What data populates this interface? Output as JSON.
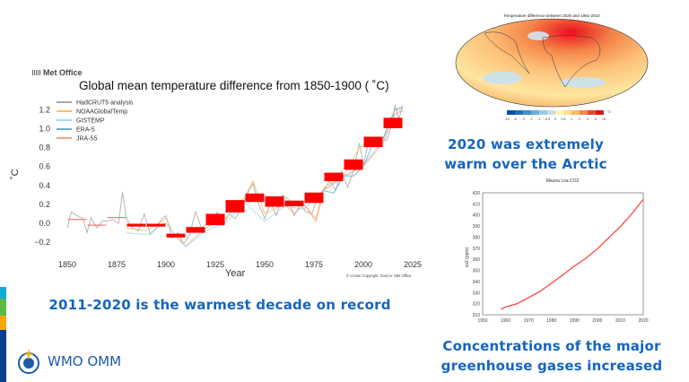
{
  "colors": {
    "accent_text": "#1565c0",
    "decade_bar": "#ff0000",
    "strip": [
      "#12a8d8",
      "#5cb947",
      "#f6a800",
      "#0b3d91"
    ]
  },
  "captions": {
    "arctic": "2020 was extremely warm over the Arctic",
    "decade": "2011-2020 is the warmest decade on record",
    "ghg": "Concentrations of the major greenhouse gases increased"
  },
  "logo": {
    "met_office": "Met Office",
    "wmo": "WMO OMM"
  },
  "chart_data": [
    {
      "type": "line",
      "title": "Global mean temperature difference from 1850-1900 ( ˚C)",
      "xlabel": "Year",
      "ylabel": "˚C",
      "xlim": [
        1845,
        2027
      ],
      "ylim": [
        -0.3,
        1.3
      ],
      "xticks": [
        1850,
        1875,
        1900,
        1925,
        1950,
        1975,
        2000,
        2025
      ],
      "yticks": [
        -0.2,
        0.0,
        0.2,
        0.4,
        0.6,
        0.8,
        1.0,
        1.2
      ],
      "ytick_labels": [
        "−0.2",
        "0.0",
        "0.2",
        "0.4",
        "0.6",
        "0.8",
        "1.0",
        "1.2"
      ],
      "legend": "top-left",
      "credit": "© Crown Copyright. Source: Met Office",
      "series": [
        {
          "name": "HadCRUT5 analysis",
          "color": "#a9a9a9",
          "x": [
            1850,
            1852,
            1855,
            1858,
            1860,
            1862,
            1865,
            1868,
            1870,
            1873,
            1876,
            1878,
            1880,
            1883,
            1886,
            1889,
            1892,
            1895,
            1898,
            1900,
            1903,
            1906,
            1909,
            1912,
            1915,
            1918,
            1920,
            1923,
            1926,
            1929,
            1932,
            1935,
            1938,
            1941,
            1944,
            1947,
            1950,
            1953,
            1956,
            1959,
            1962,
            1965,
            1968,
            1971,
            1974,
            1977,
            1980,
            1983,
            1986,
            1989,
            1992,
            1995,
            1998,
            2000,
            2003,
            2006,
            2009,
            2012,
            2015,
            2016,
            2018,
            2020
          ],
          "y": [
            -0.05,
            0.12,
            0.08,
            0.05,
            -0.1,
            0.06,
            -0.05,
            0.03,
            0.02,
            0.04,
            0.0,
            0.33,
            0.05,
            -0.05,
            -0.08,
            0.1,
            -0.12,
            -0.05,
            0.05,
            0.08,
            -0.15,
            -0.1,
            -0.22,
            -0.12,
            0.12,
            -0.05,
            -0.02,
            0.02,
            0.12,
            -0.02,
            0.1,
            0.05,
            0.15,
            0.3,
            0.42,
            0.2,
            0.05,
            0.22,
            0.08,
            0.3,
            0.25,
            0.08,
            0.2,
            0.12,
            0.1,
            0.3,
            0.35,
            0.45,
            0.35,
            0.55,
            0.38,
            0.55,
            0.85,
            0.62,
            0.9,
            0.85,
            0.88,
            0.88,
            1.08,
            1.25,
            1.1,
            1.25
          ]
        },
        {
          "name": "NOAAGlobalTemp",
          "color": "#f5c16c",
          "x": [
            1880,
            1890,
            1900,
            1905,
            1910,
            1920,
            1930,
            1940,
            1944,
            1950,
            1960,
            1970,
            1976,
            1980,
            1990,
            1998,
            2005,
            2010,
            2016,
            2020
          ],
          "y": [
            -0.05,
            -0.08,
            0.05,
            -0.15,
            -0.24,
            -0.05,
            0.05,
            0.28,
            0.45,
            0.1,
            0.2,
            0.2,
            0.05,
            0.38,
            0.5,
            0.8,
            0.88,
            0.9,
            1.2,
            1.18
          ]
        },
        {
          "name": "GISTEMP",
          "color": "#a8d8f0",
          "x": [
            1880,
            1890,
            1900,
            1910,
            1920,
            1930,
            1940,
            1950,
            1960,
            1970,
            1980,
            1990,
            2000,
            2010,
            2016,
            2020
          ],
          "y": [
            -0.1,
            -0.12,
            0.0,
            -0.25,
            -0.08,
            0.0,
            0.22,
            0.02,
            0.18,
            0.15,
            0.35,
            0.48,
            0.62,
            0.88,
            1.2,
            1.22
          ]
        },
        {
          "name": "ERA-5",
          "color": "#6aaed6",
          "x": [
            1979,
            1985,
            1990,
            1995,
            2000,
            2005,
            2010,
            2016,
            2020
          ],
          "y": [
            0.35,
            0.32,
            0.5,
            0.5,
            0.6,
            0.85,
            0.9,
            1.2,
            1.23
          ]
        },
        {
          "name": "JRA-55",
          "color": "#f4a582",
          "x": [
            1958,
            1965,
            1970,
            1976,
            1980,
            1990,
            2000,
            2010,
            2016,
            2020
          ],
          "y": [
            0.25,
            0.1,
            0.2,
            0.02,
            0.35,
            0.5,
            0.6,
            0.85,
            1.15,
            1.2
          ]
        }
      ],
      "decadal_means": {
        "start_years": [
          1850,
          1860,
          1870,
          1880,
          1890,
          1900,
          1910,
          1920,
          1930,
          1940,
          1950,
          1960,
          1970,
          1980,
          1990,
          2000,
          2010
        ],
        "values": [
          0.04,
          -0.02,
          0.06,
          -0.02,
          -0.02,
          -0.13,
          -0.07,
          0.04,
          0.18,
          0.27,
          0.23,
          0.21,
          0.27,
          0.49,
          0.62,
          0.86,
          1.06
        ],
        "uncertainty": [
          0.003,
          0.003,
          0.003,
          0.015,
          0.015,
          0.02,
          0.03,
          0.06,
          0.065,
          0.045,
          0.055,
          0.03,
          0.055,
          0.045,
          0.055,
          0.055,
          0.055
        ]
      }
    },
    {
      "type": "line",
      "title": "Mauna Loa CO2",
      "xlabel": "",
      "ylabel": "co2 (ppm)",
      "xlim": [
        1950,
        2020
      ],
      "ylim": [
        310,
        420
      ],
      "xticks": [
        1950,
        1960,
        1970,
        1980,
        1990,
        2000,
        2010,
        2020
      ],
      "yticks": [
        310,
        320,
        330,
        340,
        350,
        360,
        370,
        380,
        390,
        400,
        410,
        420
      ],
      "series": [
        {
          "color": "#ff3b3b",
          "x": [
            1958,
            1960,
            1965,
            1970,
            1975,
            1980,
            1985,
            1990,
            1995,
            2000,
            2005,
            2010,
            2015,
            2020
          ],
          "y": [
            315,
            317,
            320,
            325.5,
            331,
            338.5,
            346,
            354,
            361,
            369.5,
            379.5,
            389.5,
            401,
            414
          ]
        }
      ]
    },
    {
      "type": "heatmap",
      "title": "Temperature difference between 2020 and 1981-2010",
      "colorbar_labels": [
        "-10",
        "-5",
        "-3",
        "-2",
        "-1",
        "-0.5",
        "0",
        "0.5",
        "1",
        "2",
        "3",
        "5",
        "10"
      ],
      "colorbar_unit": "°C",
      "colorbar_colors": [
        "#08519c",
        "#2171b5",
        "#4292c6",
        "#6baed6",
        "#9ecae1",
        "#c6dbef",
        "#fff3b0",
        "#fee08b",
        "#fdb863",
        "#f4874b",
        "#e34a33",
        "#d7191c"
      ]
    }
  ]
}
